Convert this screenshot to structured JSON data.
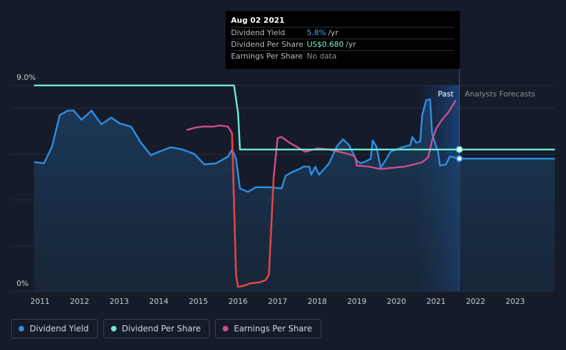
{
  "tooltip": {
    "date": "Aug 02 2021",
    "rows": [
      {
        "label": "Dividend Yield",
        "value": "5.8%",
        "unit": "/yr",
        "color": "#4aa3f0"
      },
      {
        "label": "Dividend Per Share",
        "value": "US$0.680",
        "unit": "/yr",
        "color": "#7ff0d6"
      },
      {
        "label": "Earnings Per Share",
        "value": "No data",
        "unit": "",
        "color": "#8a8d93"
      }
    ]
  },
  "regions": {
    "past_label": "Past",
    "forecast_label": "Analysts Forecasts"
  },
  "legend": [
    {
      "label": "Dividend Yield",
      "color": "#2e8ee0"
    },
    {
      "label": "Dividend Per Share",
      "color": "#6ee8d2"
    },
    {
      "label": "Earnings Per Share",
      "color": "#d14d8c"
    }
  ],
  "chart_data": {
    "type": "line",
    "x_ticks": [
      "2011",
      "2012",
      "2013",
      "2014",
      "2015",
      "2016",
      "2017",
      "2018",
      "2019",
      "2020",
      "2021",
      "2022",
      "2023"
    ],
    "y_ticks": [
      "0%",
      "9.0%"
    ],
    "ylim": [
      0,
      9.0
    ],
    "xlim": [
      2010.6,
      2024.0
    ],
    "past_end": 2021.59,
    "forecast_band_start": 2020.6,
    "series": [
      {
        "name": "Dividend Yield",
        "color": "#2e8ee0",
        "unit": "%",
        "points": [
          [
            2010.85,
            5.65
          ],
          [
            2011.1,
            5.6
          ],
          [
            2011.3,
            6.3
          ],
          [
            2011.5,
            7.7
          ],
          [
            2011.7,
            7.9
          ],
          [
            2011.85,
            7.9
          ],
          [
            2012.05,
            7.5
          ],
          [
            2012.3,
            7.9
          ],
          [
            2012.55,
            7.3
          ],
          [
            2012.8,
            7.6
          ],
          [
            2013.0,
            7.35
          ],
          [
            2013.3,
            7.2
          ],
          [
            2013.55,
            6.5
          ],
          [
            2013.8,
            5.95
          ],
          [
            2014.0,
            6.1
          ],
          [
            2014.3,
            6.3
          ],
          [
            2014.6,
            6.2
          ],
          [
            2014.9,
            6.0
          ],
          [
            2015.15,
            5.55
          ],
          [
            2015.45,
            5.6
          ],
          [
            2015.75,
            5.9
          ],
          [
            2015.85,
            6.2
          ],
          [
            2015.95,
            5.8
          ],
          [
            2016.05,
            4.5
          ],
          [
            2016.25,
            4.35
          ],
          [
            2016.45,
            4.55
          ],
          [
            2016.8,
            4.55
          ],
          [
            2017.1,
            4.5
          ],
          [
            2017.2,
            5.05
          ],
          [
            2017.35,
            5.2
          ],
          [
            2017.55,
            5.35
          ],
          [
            2017.65,
            5.45
          ],
          [
            2017.8,
            5.45
          ],
          [
            2017.85,
            5.1
          ],
          [
            2017.95,
            5.45
          ],
          [
            2018.05,
            5.1
          ],
          [
            2018.3,
            5.6
          ],
          [
            2018.5,
            6.35
          ],
          [
            2018.65,
            6.65
          ],
          [
            2018.8,
            6.4
          ],
          [
            2019.0,
            5.7
          ],
          [
            2019.1,
            5.6
          ],
          [
            2019.25,
            5.7
          ],
          [
            2019.35,
            5.8
          ],
          [
            2019.4,
            6.6
          ],
          [
            2019.5,
            6.3
          ],
          [
            2019.6,
            5.4
          ],
          [
            2019.75,
            5.8
          ],
          [
            2019.85,
            6.1
          ],
          [
            2020.15,
            6.3
          ],
          [
            2020.35,
            6.4
          ],
          [
            2020.4,
            6.75
          ],
          [
            2020.5,
            6.5
          ],
          [
            2020.6,
            6.55
          ],
          [
            2020.65,
            7.7
          ],
          [
            2020.75,
            8.35
          ],
          [
            2020.85,
            8.4
          ],
          [
            2020.9,
            6.9
          ],
          [
            2021.0,
            6.35
          ],
          [
            2021.05,
            6.1
          ],
          [
            2021.1,
            5.5
          ],
          [
            2021.25,
            5.55
          ],
          [
            2021.35,
            5.9
          ],
          [
            2021.59,
            5.8
          ],
          [
            2024.0,
            5.8
          ]
        ]
      },
      {
        "name": "Dividend Per Share",
        "color": "#6ee8d2",
        "unit": "US$",
        "points": [
          [
            2010.85,
            9.0
          ],
          [
            2015.9,
            9.0
          ],
          [
            2016.0,
            7.8
          ],
          [
            2016.05,
            6.2
          ],
          [
            2021.59,
            6.2
          ],
          [
            2024.0,
            6.2
          ]
        ]
      },
      {
        "name": "Earnings Per Share",
        "color": "#d14d8c",
        "unit": "US$",
        "points": [
          [
            2014.7,
            7.05
          ],
          [
            2014.9,
            7.15
          ],
          [
            2015.1,
            7.2
          ],
          [
            2015.35,
            7.2
          ],
          [
            2015.55,
            7.25
          ],
          [
            2015.75,
            7.2
          ],
          [
            2015.85,
            6.9
          ],
          [
            2015.95,
            0.7
          ],
          [
            2016.0,
            0.2
          ],
          [
            2016.15,
            0.25
          ],
          [
            2016.3,
            0.35
          ],
          [
            2016.55,
            0.4
          ],
          [
            2016.7,
            0.5
          ],
          [
            2016.78,
            0.75
          ],
          [
            2016.9,
            5.0
          ],
          [
            2017.0,
            6.7
          ],
          [
            2017.1,
            6.75
          ],
          [
            2017.3,
            6.5
          ],
          [
            2017.5,
            6.3
          ],
          [
            2017.7,
            6.1
          ],
          [
            2018.0,
            6.25
          ],
          [
            2018.3,
            6.2
          ],
          [
            2018.55,
            6.1
          ],
          [
            2018.8,
            6.0
          ],
          [
            2018.95,
            5.9
          ],
          [
            2019.0,
            5.5
          ],
          [
            2019.3,
            5.45
          ],
          [
            2019.6,
            5.35
          ],
          [
            2019.9,
            5.4
          ],
          [
            2020.2,
            5.45
          ],
          [
            2020.45,
            5.55
          ],
          [
            2020.65,
            5.65
          ],
          [
            2020.8,
            5.85
          ],
          [
            2020.9,
            6.6
          ],
          [
            2021.0,
            7.1
          ],
          [
            2021.15,
            7.5
          ],
          [
            2021.3,
            7.8
          ],
          [
            2021.5,
            8.35
          ]
        ]
      }
    ],
    "endpoints": [
      {
        "series": "Dividend Per Share",
        "x": 2021.59,
        "y": 6.2
      },
      {
        "series": "Dividend Yield",
        "x": 2021.59,
        "y": 5.8
      }
    ]
  }
}
